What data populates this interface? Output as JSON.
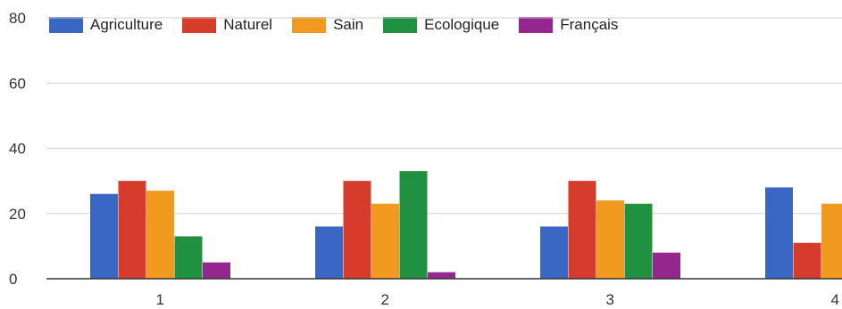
{
  "chart_data": {
    "type": "bar",
    "categories": [
      "1",
      "2",
      "3",
      "4"
    ],
    "series": [
      {
        "name": "Agriculture",
        "color": "#3a66c4",
        "values": [
          26,
          16,
          16,
          28
        ]
      },
      {
        "name": "Naturel",
        "color": "#d63c2c",
        "values": [
          30,
          30,
          30,
          11
        ]
      },
      {
        "name": "Sain",
        "color": "#f29a1f",
        "values": [
          27,
          23,
          24,
          23
        ]
      },
      {
        "name": "Ecologique",
        "color": "#1f9140",
        "values": [
          13,
          33,
          23,
          null
        ]
      },
      {
        "name": "Français",
        "color": "#93278f",
        "values": [
          5,
          2,
          8,
          null
        ]
      }
    ],
    "yticks": [
      "0",
      "20",
      "40",
      "60",
      "80"
    ],
    "ylim": [
      0,
      80
    ],
    "grid": true,
    "legend_position": "top-left"
  }
}
